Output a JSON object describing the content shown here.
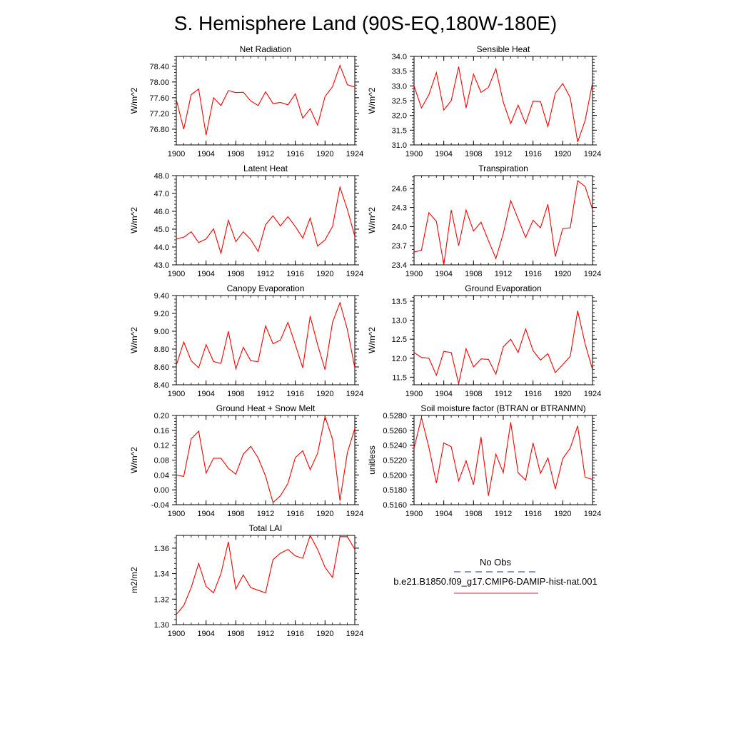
{
  "page": {
    "title": "S. Hemisphere Land (90S-EQ,180W-180E)"
  },
  "legend": {
    "obs_label": "No Obs",
    "obs_color": "#4a5aa8",
    "model_label": "b.e21.B1850.f09_g17.CMIP6-DAMIP-hist-nat.001",
    "model_color": "#e8545c"
  },
  "colors": {
    "series": "#ff0000",
    "axis": "#000000"
  },
  "chart_data": [
    {
      "type": "line",
      "title": "Net Radiation",
      "xlabel": "",
      "ylabel": "W/m^2",
      "x": [
        1900,
        1901,
        1902,
        1903,
        1904,
        1905,
        1906,
        1907,
        1908,
        1909,
        1910,
        1911,
        1912,
        1913,
        1914,
        1915,
        1916,
        1917,
        1918,
        1919,
        1920,
        1921,
        1922,
        1923,
        1924
      ],
      "series": [
        {
          "values": [
            77.55,
            76.8,
            77.68,
            77.82,
            76.65,
            77.6,
            77.4,
            77.78,
            77.73,
            77.74,
            77.52,
            77.4,
            77.75,
            77.45,
            77.48,
            77.42,
            77.7,
            77.08,
            77.32,
            76.9,
            77.63,
            77.88,
            78.42,
            77.93,
            77.87
          ]
        }
      ],
      "xlim": [
        1900,
        1924
      ],
      "ylim": [
        76.4,
        78.65
      ],
      "xticks": [
        1900,
        1904,
        1908,
        1912,
        1916,
        1920,
        1924
      ],
      "yticks": [
        76.8,
        77.2,
        77.6,
        78.0,
        78.4
      ],
      "ytick_labels": [
        "76.80",
        "77.20",
        "77.60",
        "78.00",
        "78.40"
      ]
    },
    {
      "type": "line",
      "title": "Sensible Heat",
      "xlabel": "",
      "ylabel": "W/m^2",
      "x": [
        1900,
        1901,
        1902,
        1903,
        1904,
        1905,
        1906,
        1907,
        1908,
        1909,
        1910,
        1911,
        1912,
        1913,
        1914,
        1915,
        1916,
        1917,
        1918,
        1919,
        1920,
        1921,
        1922,
        1923,
        1924
      ],
      "series": [
        {
          "values": [
            33.0,
            32.25,
            32.7,
            33.45,
            32.18,
            32.5,
            33.65,
            32.25,
            33.4,
            32.78,
            32.95,
            33.58,
            32.45,
            31.72,
            32.35,
            31.72,
            32.48,
            32.47,
            31.62,
            32.75,
            33.08,
            32.6,
            31.1,
            31.82,
            33.1
          ]
        }
      ],
      "xlim": [
        1900,
        1924
      ],
      "ylim": [
        31.0,
        34.0
      ],
      "xticks": [
        1900,
        1904,
        1908,
        1912,
        1916,
        1920,
        1924
      ],
      "yticks": [
        31.0,
        31.5,
        32.0,
        32.5,
        33.0,
        33.5,
        34.0
      ],
      "ytick_labels": [
        "31.0",
        "31.5",
        "32.0",
        "32.5",
        "33.0",
        "33.5",
        "34.0"
      ]
    },
    {
      "type": "line",
      "title": "Latent Heat",
      "xlabel": "",
      "ylabel": "W/m^2",
      "x": [
        1900,
        1901,
        1902,
        1903,
        1904,
        1905,
        1906,
        1907,
        1908,
        1909,
        1910,
        1911,
        1912,
        1913,
        1914,
        1915,
        1916,
        1917,
        1918,
        1919,
        1920,
        1921,
        1922,
        1923,
        1924
      ],
      "series": [
        {
          "values": [
            44.45,
            44.55,
            44.85,
            44.25,
            44.45,
            45.02,
            43.65,
            45.5,
            44.3,
            44.85,
            44.42,
            43.75,
            45.25,
            45.75,
            45.18,
            45.7,
            45.15,
            44.5,
            45.62,
            44.05,
            44.4,
            45.15,
            47.35,
            46.1,
            44.6
          ]
        }
      ],
      "xlim": [
        1900,
        1924
      ],
      "ylim": [
        43.0,
        48.0
      ],
      "xticks": [
        1900,
        1904,
        1908,
        1912,
        1916,
        1920,
        1924
      ],
      "yticks": [
        43.0,
        44.0,
        45.0,
        46.0,
        47.0,
        48.0
      ],
      "ytick_labels": [
        "43.0",
        "44.0",
        "45.0",
        "46.0",
        "47.0",
        "48.0"
      ]
    },
    {
      "type": "line",
      "title": "Transpiration",
      "xlabel": "",
      "ylabel": "W/m^2",
      "x": [
        1900,
        1901,
        1902,
        1903,
        1904,
        1905,
        1906,
        1907,
        1908,
        1909,
        1910,
        1911,
        1912,
        1913,
        1914,
        1915,
        1916,
        1917,
        1918,
        1919,
        1920,
        1921,
        1922,
        1923,
        1924
      ],
      "series": [
        {
          "values": [
            23.6,
            23.63,
            24.22,
            24.08,
            23.4,
            24.26,
            23.7,
            24.26,
            23.93,
            24.07,
            23.78,
            23.5,
            23.89,
            24.41,
            24.12,
            23.83,
            24.1,
            23.98,
            24.35,
            23.53,
            23.97,
            23.98,
            24.72,
            24.63,
            24.27
          ]
        }
      ],
      "xlim": [
        1900,
        1924
      ],
      "ylim": [
        23.4,
        24.8
      ],
      "xticks": [
        1900,
        1904,
        1908,
        1912,
        1916,
        1920,
        1924
      ],
      "yticks": [
        23.4,
        23.7,
        24.0,
        24.3,
        24.6
      ],
      "ytick_labels": [
        "23.4",
        "23.7",
        "24.0",
        "24.3",
        "24.6"
      ]
    },
    {
      "type": "line",
      "title": "Canopy Evaporation",
      "xlabel": "",
      "ylabel": "W/m^2",
      "x": [
        1900,
        1901,
        1902,
        1903,
        1904,
        1905,
        1906,
        1907,
        1908,
        1909,
        1910,
        1911,
        1912,
        1913,
        1914,
        1915,
        1916,
        1917,
        1918,
        1919,
        1920,
        1921,
        1922,
        1923,
        1924
      ],
      "series": [
        {
          "values": [
            8.62,
            8.88,
            8.67,
            8.59,
            8.85,
            8.66,
            8.64,
            9.0,
            8.58,
            8.82,
            8.67,
            8.66,
            9.06,
            8.86,
            8.9,
            9.1,
            8.85,
            8.59,
            9.17,
            8.85,
            8.57,
            9.1,
            9.32,
            9.02,
            8.59
          ]
        }
      ],
      "xlim": [
        1900,
        1924
      ],
      "ylim": [
        8.4,
        9.4
      ],
      "xticks": [
        1900,
        1904,
        1908,
        1912,
        1916,
        1920,
        1924
      ],
      "yticks": [
        8.4,
        8.6,
        8.8,
        9.0,
        9.2,
        9.4
      ],
      "ytick_labels": [
        "8.40",
        "8.60",
        "8.80",
        "9.00",
        "9.20",
        "9.40"
      ]
    },
    {
      "type": "line",
      "title": "Ground Evaporation",
      "xlabel": "",
      "ylabel": "W/m^2",
      "x": [
        1900,
        1901,
        1902,
        1903,
        1904,
        1905,
        1906,
        1907,
        1908,
        1909,
        1910,
        1911,
        1912,
        1913,
        1914,
        1915,
        1916,
        1917,
        1918,
        1919,
        1920,
        1921,
        1922,
        1923,
        1924
      ],
      "series": [
        {
          "values": [
            12.15,
            12.02,
            12.0,
            11.55,
            12.18,
            12.15,
            11.33,
            12.25,
            11.77,
            11.98,
            11.97,
            11.58,
            12.3,
            12.5,
            12.15,
            12.77,
            12.2,
            11.95,
            12.12,
            11.62,
            11.83,
            12.05,
            13.25,
            12.38,
            11.7
          ]
        }
      ],
      "xlim": [
        1900,
        1924
      ],
      "ylim": [
        11.3,
        13.65
      ],
      "xticks": [
        1900,
        1904,
        1908,
        1912,
        1916,
        1920,
        1924
      ],
      "yticks": [
        11.5,
        12.0,
        12.5,
        13.0,
        13.5
      ],
      "ytick_labels": [
        "11.5",
        "12.0",
        "12.5",
        "13.0",
        "13.5"
      ]
    },
    {
      "type": "line",
      "title": "Ground Heat + Snow Melt",
      "xlabel": "",
      "ylabel": "W/m^2",
      "x": [
        1900,
        1901,
        1902,
        1903,
        1904,
        1905,
        1906,
        1907,
        1908,
        1909,
        1910,
        1911,
        1912,
        1913,
        1914,
        1915,
        1916,
        1917,
        1918,
        1919,
        1920,
        1921,
        1922,
        1923,
        1924
      ],
      "series": [
        {
          "values": [
            0.04,
            0.036,
            0.137,
            0.158,
            0.045,
            0.085,
            0.085,
            0.058,
            0.042,
            0.096,
            0.117,
            0.086,
            0.037,
            -0.034,
            -0.016,
            0.017,
            0.087,
            0.105,
            0.054,
            0.098,
            0.197,
            0.136,
            -0.029,
            0.1,
            0.165
          ]
        }
      ],
      "xlim": [
        1900,
        1924
      ],
      "ylim": [
        -0.04,
        0.2
      ],
      "xticks": [
        1900,
        1904,
        1908,
        1912,
        1916,
        1920,
        1924
      ],
      "yticks": [
        -0.04,
        0.0,
        0.04,
        0.08,
        0.12,
        0.16,
        0.2
      ],
      "ytick_labels": [
        "-0.04",
        "0.00",
        "0.04",
        "0.08",
        "0.12",
        "0.16",
        "0.20"
      ]
    },
    {
      "type": "line",
      "title": "Soil moisture factor (BTRAN or BTRANMN)",
      "xlabel": "",
      "ylabel": "unitless",
      "x": [
        1900,
        1901,
        1902,
        1903,
        1904,
        1905,
        1906,
        1907,
        1908,
        1909,
        1910,
        1911,
        1912,
        1913,
        1914,
        1915,
        1916,
        1917,
        1918,
        1919,
        1920,
        1921,
        1922,
        1923,
        1924
      ],
      "series": [
        {
          "values": [
            0.5236,
            0.5277,
            0.5237,
            0.5189,
            0.5243,
            0.5238,
            0.5192,
            0.5219,
            0.5187,
            0.5251,
            0.5172,
            0.5228,
            0.5203,
            0.5271,
            0.5203,
            0.5193,
            0.5243,
            0.5202,
            0.5223,
            0.5181,
            0.5222,
            0.5236,
            0.5266,
            0.5197,
            0.5194
          ]
        }
      ],
      "xlim": [
        1900,
        1924
      ],
      "ylim": [
        0.516,
        0.528
      ],
      "xticks": [
        1900,
        1904,
        1908,
        1912,
        1916,
        1920,
        1924
      ],
      "yticks": [
        0.516,
        0.518,
        0.52,
        0.522,
        0.524,
        0.526,
        0.528
      ],
      "ytick_labels": [
        "0.5160",
        "0.5180",
        "0.5200",
        "0.5220",
        "0.5240",
        "0.5260",
        "0.5280"
      ]
    },
    {
      "type": "line",
      "title": "Total LAI",
      "xlabel": "",
      "ylabel": "m2/m2",
      "x": [
        1900,
        1901,
        1902,
        1903,
        1904,
        1905,
        1906,
        1907,
        1908,
        1909,
        1910,
        1911,
        1912,
        1913,
        1914,
        1915,
        1916,
        1917,
        1918,
        1919,
        1920,
        1921,
        1922,
        1923,
        1924
      ],
      "series": [
        {
          "values": [
            1.308,
            1.315,
            1.329,
            1.348,
            1.33,
            1.325,
            1.34,
            1.365,
            1.328,
            1.339,
            1.329,
            1.327,
            1.325,
            1.351,
            1.356,
            1.359,
            1.354,
            1.352,
            1.37,
            1.359,
            1.345,
            1.337,
            1.369,
            1.369,
            1.359
          ]
        }
      ],
      "xlim": [
        1900,
        1924
      ],
      "ylim": [
        1.3,
        1.37
      ],
      "xticks": [
        1900,
        1904,
        1908,
        1912,
        1916,
        1920,
        1924
      ],
      "yticks": [
        1.3,
        1.32,
        1.34,
        1.36
      ],
      "ytick_labels": [
        "1.30",
        "1.32",
        "1.34",
        "1.36"
      ]
    }
  ]
}
